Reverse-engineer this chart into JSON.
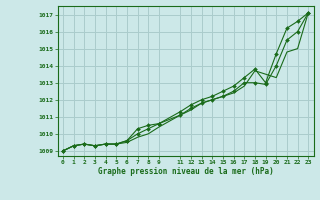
{
  "bg_color": "#cce8e8",
  "grid_color": "#aacccc",
  "line_color": "#1a6b1a",
  "marker_color": "#1a6b1a",
  "xlim": [
    -0.5,
    23.5
  ],
  "ylim": [
    1008.7,
    1017.5
  ],
  "yticks": [
    1009,
    1010,
    1011,
    1012,
    1013,
    1014,
    1015,
    1016,
    1017
  ],
  "xticks": [
    0,
    1,
    2,
    3,
    4,
    5,
    6,
    7,
    8,
    9,
    11,
    12,
    13,
    14,
    15,
    16,
    17,
    18,
    19,
    20,
    21,
    22,
    23
  ],
  "xlabel": "Graphe pression niveau de la mer (hPa)",
  "series1_x": [
    0,
    1,
    2,
    3,
    4,
    5,
    6,
    7,
    8,
    9,
    11,
    12,
    13,
    14,
    15,
    16,
    17,
    18,
    19,
    20,
    21,
    22,
    23
  ],
  "series1_y": [
    1009.0,
    1009.3,
    1009.4,
    1009.3,
    1009.4,
    1009.4,
    1009.6,
    1010.3,
    1010.5,
    1010.6,
    1011.3,
    1011.7,
    1012.0,
    1012.2,
    1012.5,
    1012.8,
    1013.3,
    1013.8,
    1013.0,
    1014.7,
    1016.2,
    1016.6,
    1017.1
  ],
  "series2_x": [
    0,
    1,
    2,
    3,
    4,
    5,
    6,
    7,
    8,
    9,
    11,
    12,
    13,
    14,
    15,
    16,
    17,
    18,
    19,
    20,
    21,
    22,
    23
  ],
  "series2_y": [
    1009.0,
    1009.3,
    1009.4,
    1009.3,
    1009.4,
    1009.4,
    1009.6,
    1010.0,
    1010.3,
    1010.6,
    1011.1,
    1011.5,
    1011.8,
    1012.0,
    1012.2,
    1012.5,
    1013.0,
    1013.0,
    1012.9,
    1014.0,
    1015.5,
    1016.0,
    1017.1
  ],
  "series3_x": [
    0,
    1,
    2,
    3,
    4,
    5,
    6,
    7,
    8,
    9,
    11,
    12,
    13,
    14,
    15,
    16,
    17,
    18,
    19,
    20,
    21,
    22,
    23
  ],
  "series3_y": [
    1009.0,
    1009.3,
    1009.4,
    1009.3,
    1009.4,
    1009.4,
    1009.5,
    1009.8,
    1010.0,
    1010.4,
    1011.1,
    1011.4,
    1011.8,
    1012.0,
    1012.2,
    1012.4,
    1012.8,
    1013.7,
    1013.5,
    1013.3,
    1014.8,
    1015.0,
    1017.1
  ]
}
